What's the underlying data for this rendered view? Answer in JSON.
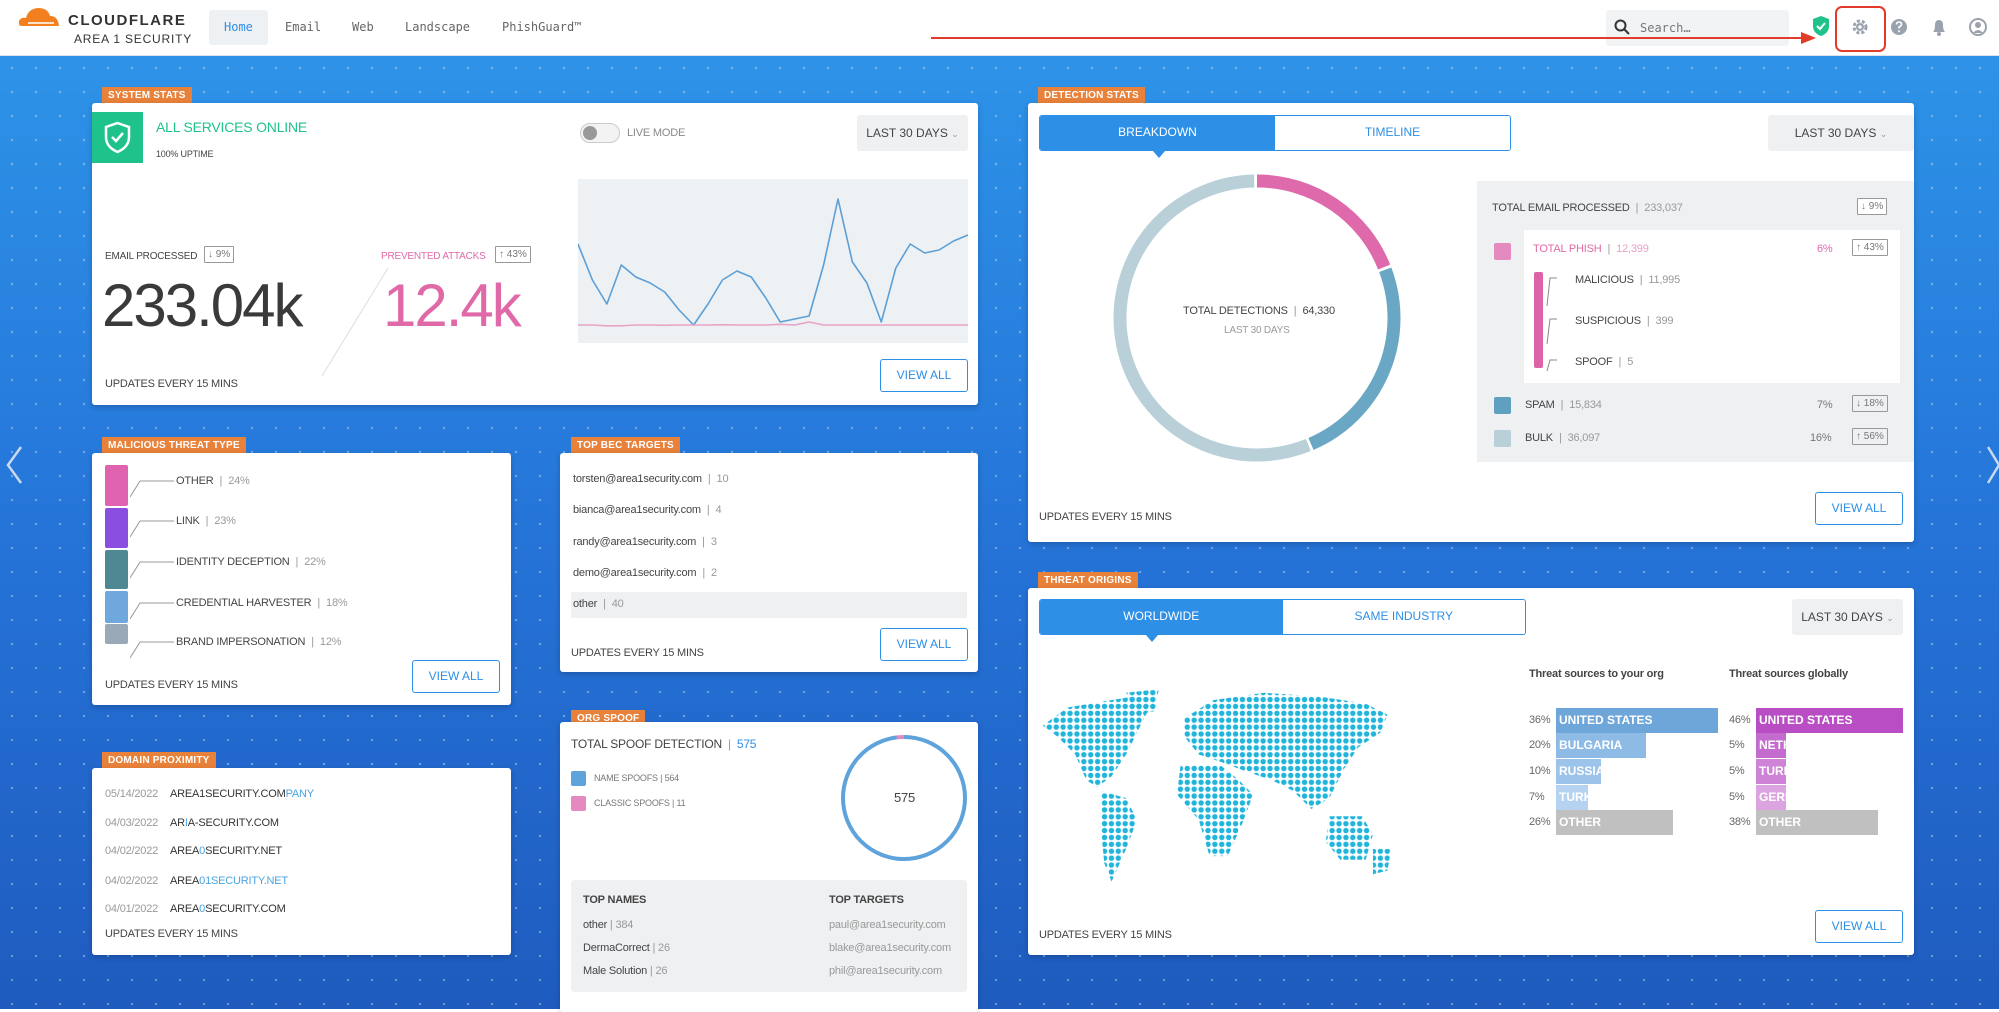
{
  "header": {
    "brand": "CLOUDFLARE",
    "product": "AREA 1 SECURITY",
    "tabs": [
      {
        "label": "Home",
        "active": true
      },
      {
        "label": "Email"
      },
      {
        "label": "Web"
      },
      {
        "label": "Landscape"
      },
      {
        "label": "PhishGuard™"
      }
    ],
    "search_placeholder": "Search…",
    "icons": [
      "search-icon",
      "shield-check-icon",
      "gear-icon",
      "help-icon",
      "bell-icon",
      "user-icon"
    ],
    "highlighted": "gear-icon"
  },
  "colors": {
    "accent": "#2d8fe6",
    "label": "#e8813a",
    "online": "#1fc28b",
    "phish": "#e06aa8",
    "spam": "#6aa7c4",
    "bulk": "#b9d0d8",
    "highlight": "#e23b2a"
  },
  "system_stats": {
    "label": "SYSTEM STATS",
    "status": "ALL SERVICES ONLINE",
    "uptime": "100% UPTIME",
    "live_mode": "LIVE MODE",
    "live_mode_on": false,
    "range": "LAST 30 DAYS",
    "email_processed_label": "EMAIL PROCESSED",
    "email_processed_change": "↓ 9%",
    "email_processed_value": "233.04k",
    "prevented_label": "PREVENTED ATTACKS",
    "prevented_change": "↑ 43%",
    "prevented_value": "12.4k",
    "updates": "UPDATES EVERY 15 MINS",
    "view_all": "VIEW ALL",
    "sparkline": {
      "email": [
        62,
        38,
        22,
        48,
        40,
        36,
        30,
        18,
        8,
        22,
        38,
        44,
        40,
        26,
        10,
        12,
        14,
        48,
        92,
        50,
        36,
        10,
        46,
        62,
        56,
        58,
        64,
        68
      ],
      "attacks": [
        8,
        8,
        7.5,
        7.5,
        8,
        8,
        7.8,
        8,
        8,
        8,
        8.2,
        8,
        8,
        8,
        8.5,
        8,
        10,
        8,
        8,
        8,
        8,
        8,
        8,
        8,
        8,
        8,
        8,
        8
      ]
    }
  },
  "malicious_threat_type": {
    "label": "MALICIOUS THREAT TYPE",
    "items": [
      {
        "name": "OTHER",
        "pct": "24%",
        "color": "#e063b0"
      },
      {
        "name": "LINK",
        "pct": "23%",
        "color": "#8a4fe0"
      },
      {
        "name": "IDENTITY DECEPTION",
        "pct": "22%",
        "color": "#4f8793"
      },
      {
        "name": "CREDENTIAL HARVESTER",
        "pct": "18%",
        "color": "#6ea8dc"
      },
      {
        "name": "BRAND IMPERSONATION",
        "pct": "12%",
        "color": "#9aa9b8"
      }
    ],
    "updates": "UPDATES EVERY 15 MINS",
    "view_all": "VIEW ALL"
  },
  "domain_proximity": {
    "label": "DOMAIN PROXIMITY",
    "rows": [
      {
        "date": "05/14/2022",
        "base": "AREA1SECURITY.COM",
        "hl": "PANY",
        "rest": ""
      },
      {
        "date": "04/03/2022",
        "base": "AR",
        "hl": "I",
        "rest": "A-SECURITY.COM"
      },
      {
        "date": "04/02/2022",
        "base": "AREA",
        "hl": "0",
        "rest": "SECURITY.NET"
      },
      {
        "date": "04/02/2022",
        "base": "AREA",
        "hl": "01SECURITY.NET",
        "rest": ""
      },
      {
        "date": "04/01/2022",
        "base": "AREA",
        "hl": "0",
        "rest": "SECURITY.COM"
      }
    ],
    "updates": "UPDATES EVERY 15 MINS"
  },
  "top_bec_targets": {
    "label": "TOP BEC TARGETS",
    "rows": [
      {
        "email": "torsten@area1security.com",
        "count": "10"
      },
      {
        "email": "bianca@area1security.com",
        "count": "4"
      },
      {
        "email": "randy@area1security.com",
        "count": "3"
      },
      {
        "email": "demo@area1security.com",
        "count": "2"
      },
      {
        "email": "other",
        "count": "40"
      }
    ],
    "updates": "UPDATES EVERY 15 MINS",
    "view_all": "VIEW ALL"
  },
  "org_spoof": {
    "label": "ORG SPOOF",
    "title": "TOTAL SPOOF DETECTION",
    "total": "575",
    "legend": [
      {
        "name": "NAME SPOOFS",
        "count": "564",
        "color": "#5fa3dc"
      },
      {
        "name": "CLASSIC SPOOFS",
        "count": "11",
        "color": "#e48ac0"
      }
    ],
    "top_names_label": "TOP NAMES",
    "top_names": [
      {
        "name": "other",
        "count": "384"
      },
      {
        "name": "DermaCorrect",
        "count": "26"
      },
      {
        "name": "Male Solution",
        "count": "26"
      }
    ],
    "top_targets_label": "TOP TARGETS",
    "top_targets": [
      "paul@area1security.com",
      "blake@area1security.com",
      "phil@area1security.com"
    ]
  },
  "detection_stats": {
    "label": "DETECTION STATS",
    "tabs": [
      "BREAKDOWN",
      "TIMELINE"
    ],
    "active_tab": "BREAKDOWN",
    "range": "LAST 30 DAYS",
    "total_label": "TOTAL DETECTIONS",
    "total": "64,330",
    "total_sub": "LAST 30 DAYS",
    "email_processed_label": "TOTAL EMAIL PROCESSED",
    "email_processed": "233,037",
    "email_processed_change": "↓ 9%",
    "phish": {
      "label": "TOTAL PHISH",
      "count": "12,399",
      "value": 12399,
      "pct": "6%",
      "change": "↑ 43%"
    },
    "phish_breakdown": [
      {
        "label": "MALICIOUS",
        "count": "11,995"
      },
      {
        "label": "SUSPICIOUS",
        "count": "399"
      },
      {
        "label": "SPOOF",
        "count": "5"
      }
    ],
    "spam": {
      "label": "SPAM",
      "count": "15,834",
      "value": 15834,
      "pct": "7%",
      "change": "↓ 18%"
    },
    "bulk": {
      "label": "BULK",
      "count": "36,097",
      "value": 36097,
      "pct": "16%",
      "change": "↑ 56%"
    },
    "updates": "UPDATES EVERY 15 MINS",
    "view_all": "VIEW ALL"
  },
  "threat_origins": {
    "label": "THREAT ORIGINS",
    "tabs": [
      "WORLDWIDE",
      "SAME INDUSTRY"
    ],
    "active_tab": "WORLDWIDE",
    "range": "LAST 30 DAYS",
    "org_title": "Threat sources to your org",
    "org": [
      {
        "pct": "36%",
        "value": 36,
        "country": "UNITED STATES",
        "color": "#6ea6da"
      },
      {
        "pct": "20%",
        "value": 20,
        "country": "BULGARIA",
        "color": "#8dbbe6"
      },
      {
        "pct": "10%",
        "value": 10,
        "country": "RUSSIA",
        "color": "#9cc4ea"
      },
      {
        "pct": "7%",
        "value": 7,
        "country": "TURKEY",
        "color": "#b5d3f0"
      },
      {
        "pct": "26%",
        "value": 26,
        "country": "OTHER",
        "color": "#c0c0c0"
      }
    ],
    "global_title": "Threat sources globally",
    "global": [
      {
        "pct": "46%",
        "value": 46,
        "country": "UNITED STATES",
        "color": "#b94ec4"
      },
      {
        "pct": "5%",
        "value": 5,
        "country": "NETHERLANDS",
        "color": "#c46ccd"
      },
      {
        "pct": "5%",
        "value": 5,
        "country": "TURKEY",
        "color": "#cf83d6"
      },
      {
        "pct": "5%",
        "value": 5,
        "country": "GERMANY",
        "color": "#dba4e0"
      },
      {
        "pct": "38%",
        "value": 38,
        "country": "OTHER",
        "color": "#c0c0c0"
      }
    ],
    "updates": "UPDATES EVERY 15 MINS",
    "view_all": "VIEW ALL"
  }
}
